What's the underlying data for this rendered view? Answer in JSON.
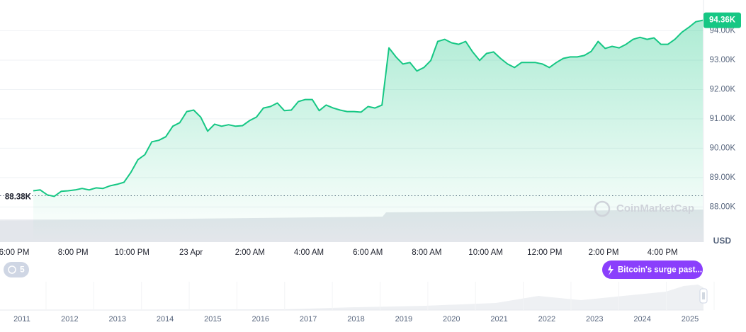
{
  "chart_data": {
    "type": "line",
    "currency": "USD",
    "watermark": "CoinMarketCap",
    "xtick_labels": [
      "6:00 PM",
      "8:00 PM",
      "10:00 PM",
      "23 Apr",
      "2:00 AM",
      "4:00 AM",
      "6:00 AM",
      "8:00 AM",
      "10:00 AM",
      "12:00 PM",
      "2:00 PM",
      "4:00 PM"
    ],
    "series": [
      {
        "name": "Price",
        "color": "#16c784",
        "values": [
          88550,
          88580,
          88410,
          88360,
          88530,
          88550,
          88580,
          88630,
          88580,
          88650,
          88630,
          88720,
          88770,
          88840,
          89180,
          89610,
          89780,
          90220,
          90270,
          90390,
          90750,
          90870,
          91250,
          91300,
          91060,
          90580,
          90820,
          90750,
          90800,
          90750,
          90770,
          90940,
          91060,
          91370,
          91420,
          91540,
          91280,
          91300,
          91590,
          91660,
          91660,
          91280,
          91470,
          91370,
          91300,
          91250,
          91250,
          91230,
          91420,
          91370,
          91470,
          93420,
          93110,
          92870,
          92920,
          92630,
          92750,
          92990,
          93640,
          93710,
          93590,
          93540,
          93640,
          93280,
          92990,
          93230,
          93280,
          93060,
          92870,
          92750,
          92920,
          92920,
          92920,
          92870,
          92750,
          92920,
          93060,
          93110,
          93110,
          93160,
          93300,
          93640,
          93400,
          93470,
          93420,
          93540,
          93710,
          93780,
          93710,
          93760,
          93540,
          93540,
          93710,
          93950,
          94120,
          94310,
          94360
        ]
      }
    ],
    "ylim": [
      86850,
      95050
    ],
    "yticks": [
      {
        "value": 88000,
        "label": "88.00K"
      },
      {
        "value": 89000,
        "label": "89.00K"
      },
      {
        "value": 90000,
        "label": "90.00K"
      },
      {
        "value": 91000,
        "label": "91.00K"
      },
      {
        "value": 92000,
        "label": "92.00K"
      },
      {
        "value": 93000,
        "label": "93.00K"
      },
      {
        "value": 94000,
        "label": "94.00K"
      }
    ],
    "grid": true,
    "reference": {
      "value": 88380,
      "label": "88.38K"
    },
    "current": {
      "value": 94360,
      "label": "94.36K"
    },
    "history_badge": "5",
    "news_badge": "Bitcoin's surge past...",
    "navigator_labels": [
      "2011",
      "2012",
      "2013",
      "2014",
      "2015",
      "2016",
      "2017",
      "2018",
      "2019",
      "2020",
      "2021",
      "2022",
      "2023",
      "2024",
      "2025"
    ]
  }
}
